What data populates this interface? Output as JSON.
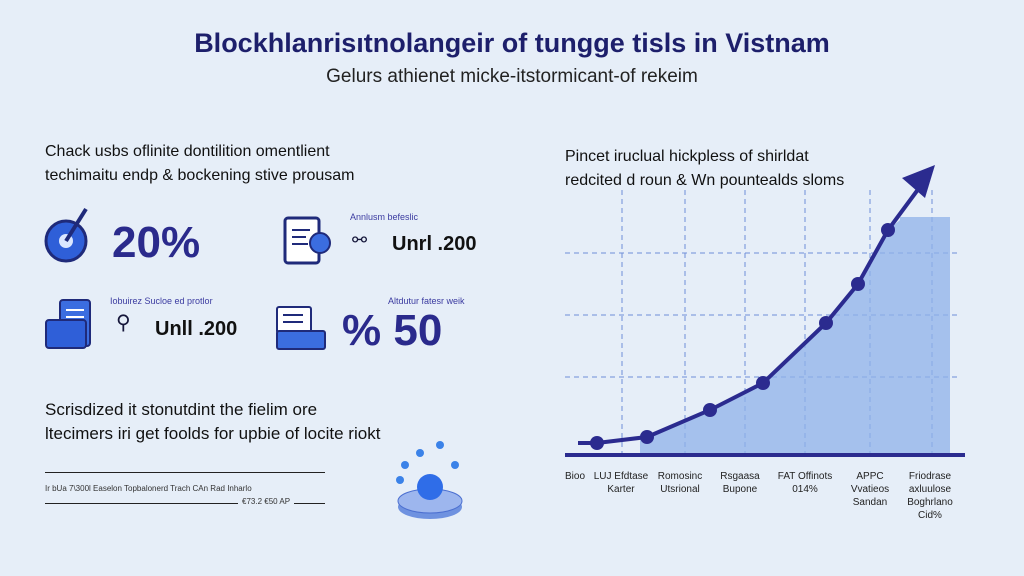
{
  "title": "Blockhlanrisıtnolangeir of tungge tisls in Vistnam",
  "subtitle": "Gelurs athienet micke-itstormicant-of rekeim",
  "left": {
    "intro": [
      "Chack usbs oflinite dontilition omentlient",
      "techimaitu endp & bockening stive prousam"
    ],
    "stats": [
      {
        "value": "20%",
        "icon": "target-icon"
      },
      {
        "label": "Annlusm befeslic",
        "value": "Unrl .200",
        "icon": "tablet-document-icon"
      },
      {
        "label": "Iobuirez Sucloe ed protlor",
        "value": "Unll .200",
        "icon": "folder-icon"
      },
      {
        "label": "Altdutur fatesr weik",
        "value": "% 50",
        "icon": "card-icon"
      }
    ],
    "outro": [
      "Scrisdized it stonutdint the fielim ore",
      "ltecimers iri get foolds for upbie of locite riokt"
    ],
    "footnote": [
      "Ir bUa 7\\300l Easelon Topbalonerd Trach CAn Rad Inharlo",
      "€73.2 €50 AP"
    ]
  },
  "chart_data": {
    "type": "area",
    "title": [
      "Pincet iruclual hickpless of shirldat",
      "redcited d roun & Wn pountealds sloms"
    ],
    "categories": [
      "Bioo",
      "LUJ Efdtase Karter",
      "Romosinc Utsrional",
      "Rsgaasa Bupone",
      "FAT Offinots 014%",
      "APPC Vvatieos Sandan",
      "Friodrase axluulose Boghrlano Cid%"
    ],
    "values": [
      4,
      6,
      15,
      24,
      44,
      57,
      75
    ],
    "ylim": [
      0,
      100
    ],
    "grid": true,
    "colors": {
      "line": "#2b2b8f",
      "fill": "#8fb1ea"
    }
  }
}
